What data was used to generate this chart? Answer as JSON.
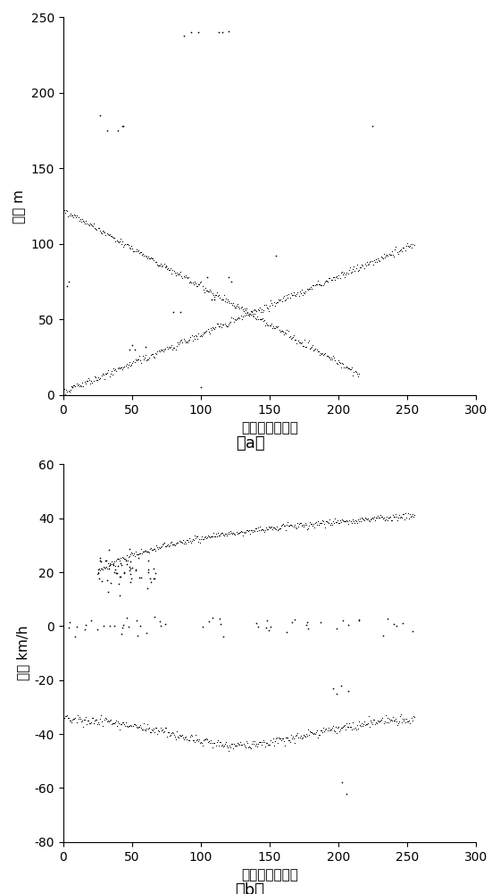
{
  "fig_width": 5.6,
  "fig_height": 10.0,
  "dpi": 100,
  "background_color": "#ffffff",
  "subplot_a": {
    "xlabel": "检测的时间序列",
    "ylabel": "距离 m",
    "xlim": [
      0,
      300
    ],
    "ylim": [
      0,
      250
    ],
    "xticks": [
      0,
      50,
      100,
      150,
      200,
      250,
      300
    ],
    "yticks": [
      0,
      50,
      100,
      150,
      200,
      250
    ],
    "label": "（a）"
  },
  "subplot_b": {
    "xlabel": "检测的时间序列",
    "ylabel": "速度 km/h",
    "xlim": [
      0,
      300
    ],
    "ylim": [
      -80,
      60
    ],
    "xticks": [
      0,
      50,
      100,
      150,
      200,
      250,
      300
    ],
    "yticks": [
      -80,
      -60,
      -40,
      -20,
      0,
      20,
      40,
      60
    ],
    "label": "（b）"
  },
  "dot_color": "#000000",
  "track_dot_size": 3,
  "outlier_dot_size": 6,
  "label_fontsize": 11,
  "tick_fontsize": 10,
  "caption_fontsize": 13
}
